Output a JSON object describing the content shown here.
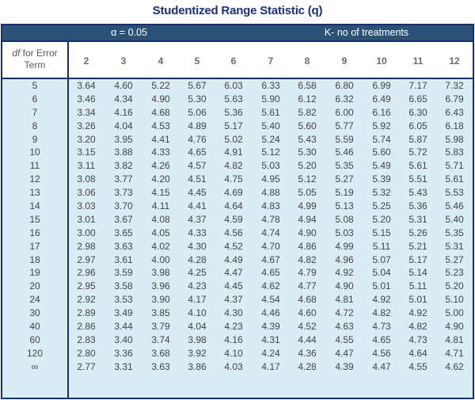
{
  "title": "Studentized Range Statistic (q)",
  "header": {
    "alpha_label": "α = 0.05",
    "k_label": "K- no of treatments",
    "df_label_italic": "df",
    "df_label_rest": " for Error Term"
  },
  "colors": {
    "title": "#1b2f7a",
    "topbar_bg": "#2c5179",
    "border": "#16306e",
    "cell_bg": "#daedf4",
    "header_bg": "#ffffff",
    "text": "#444444"
  },
  "columns": [
    "2",
    "3",
    "4",
    "5",
    "6",
    "7",
    "8",
    "9",
    "10",
    "11",
    "12"
  ],
  "rows": [
    {
      "df": "5",
      "values": [
        "3.64",
        "4.60",
        "5.22",
        "5.67",
        "6.03",
        "6.33",
        "6.58",
        "6.80",
        "6.99",
        "7.17",
        "7.32"
      ]
    },
    {
      "df": "6",
      "values": [
        "3.46",
        "4.34",
        "4.90",
        "5.30",
        "5.63",
        "5.90",
        "6.12",
        "6.32",
        "6.49",
        "6.65",
        "6.79"
      ]
    },
    {
      "df": "7",
      "values": [
        "3.34",
        "4.16",
        "4.68",
        "5.06",
        "5.36",
        "5.61",
        "5.82",
        "6.00",
        "6.16",
        "6.30",
        "6.43"
      ]
    },
    {
      "df": "8",
      "values": [
        "3.26",
        "4.04",
        "4.53",
        "4.89",
        "5.17",
        "5.40",
        "5.60",
        "5.77",
        "5.92",
        "6.05",
        "6.18"
      ]
    },
    {
      "df": "9",
      "values": [
        "3.20",
        "3.95",
        "4.41",
        "4.76",
        "5.02",
        "5.24",
        "5.43",
        "5.59",
        "5.74",
        "5.87",
        "5.98"
      ]
    },
    {
      "df": "10",
      "values": [
        "3.15",
        "3.88",
        "4.33",
        "4.65",
        "4.91",
        "5.12",
        "5.30",
        "5.46",
        "5.60",
        "5.72",
        "5.83"
      ]
    },
    {
      "df": "11",
      "values": [
        "3.11",
        "3.82",
        "4.26",
        "4.57",
        "4.82",
        "5.03",
        "5.20",
        "5.35",
        "5.49",
        "5.61",
        "5.71"
      ]
    },
    {
      "df": "12",
      "values": [
        "3.08",
        "3.77",
        "4.20",
        "4.51",
        "4.75",
        "4.95",
        "5.12",
        "5.27",
        "5.39",
        "5.51",
        "5.61"
      ]
    },
    {
      "df": "13",
      "values": [
        "3.06",
        "3.73",
        "4.15",
        "4.45",
        "4.69",
        "4.88",
        "5.05",
        "5.19",
        "5.32",
        "5.43",
        "5.53"
      ]
    },
    {
      "df": "14",
      "values": [
        "3.03",
        "3.70",
        "4.11",
        "4.41",
        "4.64",
        "4.83",
        "4.99",
        "5.13",
        "5.25",
        "5.36",
        "5.46"
      ]
    },
    {
      "df": "15",
      "values": [
        "3.01",
        "3.67",
        "4.08",
        "4.37",
        "4.59",
        "4.78",
        "4.94",
        "5.08",
        "5.20",
        "5.31",
        "5.40"
      ]
    },
    {
      "df": "16",
      "values": [
        "3.00",
        "3.65",
        "4.05",
        "4.33",
        "4.56",
        "4.74",
        "4.90",
        "5.03",
        "5.15",
        "5.26",
        "5.35"
      ]
    },
    {
      "df": "17",
      "values": [
        "2.98",
        "3.63",
        "4.02",
        "4.30",
        "4.52",
        "4.70",
        "4.86",
        "4.99",
        "5.11",
        "5.21",
        "5.31"
      ]
    },
    {
      "df": "18",
      "values": [
        "2.97",
        "3.61",
        "4.00",
        "4.28",
        "4.49",
        "4.67",
        "4.82",
        "4.96",
        "5.07",
        "5.17",
        "5.27"
      ]
    },
    {
      "df": "19",
      "values": [
        "2.96",
        "3.59",
        "3.98",
        "4.25",
        "4.47",
        "4.65",
        "4.79",
        "4.92",
        "5.04",
        "5.14",
        "5.23"
      ]
    },
    {
      "df": "20",
      "values": [
        "2.95",
        "3.58",
        "3.96",
        "4.23",
        "4.45",
        "4.62",
        "4.77",
        "4.90",
        "5.01",
        "5.11",
        "5.20"
      ]
    },
    {
      "df": "24",
      "values": [
        "2.92",
        "3.53",
        "3.90",
        "4.17",
        "4.37",
        "4.54",
        "4.68",
        "4.81",
        "4.92",
        "5.01",
        "5.10"
      ]
    },
    {
      "df": "30",
      "values": [
        "2.89",
        "3.49",
        "3.85",
        "4.10",
        "4.30",
        "4.46",
        "4.60",
        "4.72",
        "4.82",
        "4.92",
        "5.00"
      ]
    },
    {
      "df": "40",
      "values": [
        "2.86",
        "3.44",
        "3.79",
        "4.04",
        "4.23",
        "4.39",
        "4.52",
        "4.63",
        "4.73",
        "4.82",
        "4.90"
      ]
    },
    {
      "df": "60",
      "values": [
        "2.83",
        "3.40",
        "3.74",
        "3.98",
        "4.16",
        "4.31",
        "4.44",
        "4.55",
        "4.65",
        "4.73",
        "4.81"
      ]
    },
    {
      "df": "120",
      "values": [
        "2.80",
        "3.36",
        "3.68",
        "3.92",
        "4.10",
        "4.24",
        "4.36",
        "4.47",
        "4.56",
        "4.64",
        "4.71"
      ]
    },
    {
      "df": "∞",
      "values": [
        "2.77",
        "3.31",
        "3.63",
        "3.86",
        "4.03",
        "4.17",
        "4.28",
        "4.39",
        "4.47",
        "4.55",
        "4.62"
      ]
    }
  ]
}
